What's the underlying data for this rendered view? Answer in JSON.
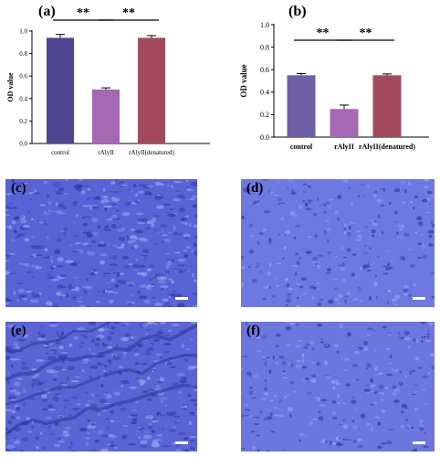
{
  "chart_data": [
    {
      "type": "bar",
      "panel": "(a)",
      "categories": [
        "control",
        "rAlyII",
        "rAlyII(denatured)"
      ],
      "values": [
        0.94,
        0.48,
        0.94
      ],
      "errors": [
        0.03,
        0.015,
        0.02
      ],
      "ylabel": "OD value",
      "ylim": [
        0,
        1.0
      ],
      "yticks": [
        "0.0",
        "0.2",
        "0.4",
        "0.6",
        "0.8",
        "1.0"
      ],
      "colors": [
        "#4f4592",
        "#a568b3",
        "#a24a5c"
      ],
      "significance": [
        "**",
        "**"
      ]
    },
    {
      "type": "bar",
      "panel": "(b)",
      "categories": [
        "control",
        "rAlyII",
        "rAlyII(denatured)"
      ],
      "values": [
        0.55,
        0.25,
        0.55
      ],
      "errors": [
        0.015,
        0.035,
        0.012
      ],
      "ylabel": "OD value",
      "ylim": [
        0,
        1.0
      ],
      "yticks": [
        "0.0",
        "0.2",
        "0.4",
        "0.6",
        "0.8",
        "1.0"
      ],
      "colors": [
        "#6e5fa6",
        "#a568b3",
        "#a24a5c"
      ],
      "significance": [
        "**",
        "**"
      ]
    }
  ],
  "micrographs": [
    {
      "label": "(c)",
      "color": "#5863d6"
    },
    {
      "label": "(d)",
      "color": "#6d78e0"
    },
    {
      "label": "(e)",
      "color": "#5b64d5"
    },
    {
      "label": "(f)",
      "color": "#6b76de"
    }
  ]
}
